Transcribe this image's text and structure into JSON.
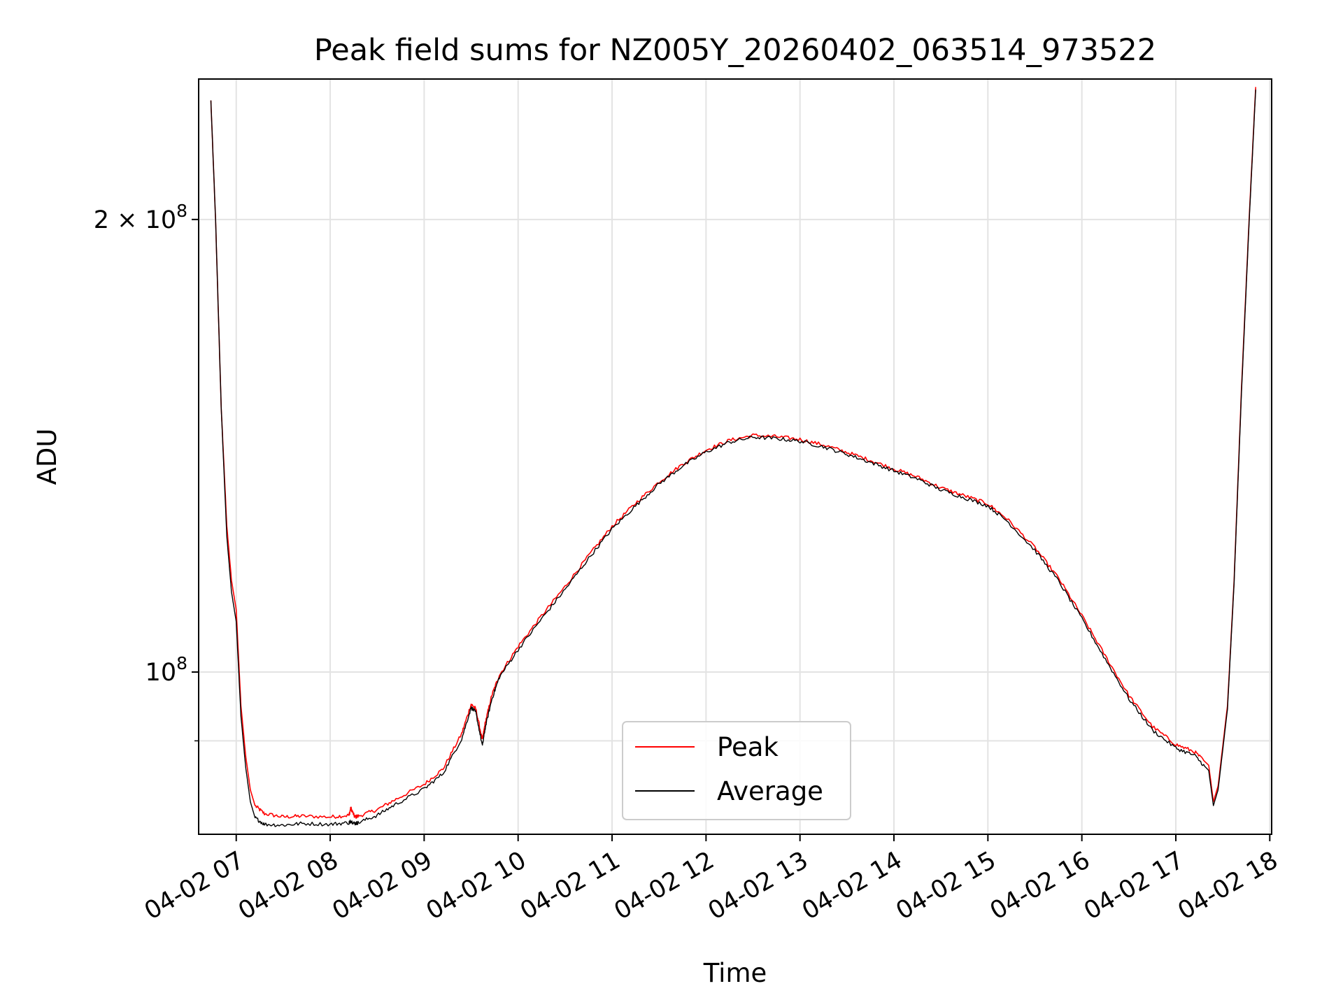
{
  "chart_data": {
    "type": "line",
    "title": "Peak field sums for NZ005Y_20260402_063514_973522",
    "xlabel": "Time",
    "ylabel": "ADU",
    "yscale": "log",
    "ylim": [
      78000000,
      248000000
    ],
    "xlim_hours": [
      6.6,
      18.02
    ],
    "xticks": [
      {
        "hour": 7,
        "label": "04-02 07"
      },
      {
        "hour": 8,
        "label": "04-02 08"
      },
      {
        "hour": 9,
        "label": "04-02 09"
      },
      {
        "hour": 10,
        "label": "04-02 10"
      },
      {
        "hour": 11,
        "label": "04-02 11"
      },
      {
        "hour": 12,
        "label": "04-02 12"
      },
      {
        "hour": 13,
        "label": "04-02 13"
      },
      {
        "hour": 14,
        "label": "04-02 14"
      },
      {
        "hour": 15,
        "label": "04-02 15"
      },
      {
        "hour": 16,
        "label": "04-02 16"
      },
      {
        "hour": 17,
        "label": "04-02 17"
      },
      {
        "hour": 18,
        "label": "04-02 18"
      }
    ],
    "yticks_major": [
      {
        "value": 100000000,
        "base": "10",
        "exp": "8",
        "mult": ""
      },
      {
        "value": 200000000,
        "base": "10",
        "exp": "8",
        "mult": "2 × "
      }
    ],
    "yticks_minor": [
      90000000
    ],
    "grid": true,
    "legend_position": "lower center",
    "series": [
      {
        "name": "Peak",
        "color": "#ff0000",
        "x_hours": [
          6.73,
          6.78,
          6.84,
          6.9,
          6.95,
          7.0,
          7.05,
          7.1,
          7.15,
          7.2,
          7.3,
          7.5,
          7.7,
          8.0,
          8.2,
          8.22,
          8.26,
          8.3,
          8.5,
          8.7,
          9.0,
          9.2,
          9.4,
          9.5,
          9.55,
          9.62,
          9.65,
          9.72,
          9.8,
          10.0,
          10.25,
          10.5,
          10.75,
          11.0,
          11.25,
          11.5,
          11.75,
          12.0,
          12.25,
          12.5,
          12.75,
          13.0,
          13.25,
          13.5,
          13.75,
          14.0,
          14.25,
          14.5,
          14.75,
          15.0,
          15.2,
          15.5,
          15.75,
          16.0,
          16.25,
          16.5,
          16.75,
          17.0,
          17.2,
          17.35,
          17.4,
          17.45,
          17.55,
          17.62,
          17.7,
          17.78,
          17.85
        ],
        "values": [
          240000000,
          200000000,
          150000000,
          125000000,
          115000000,
          110000000,
          95000000,
          88000000,
          83500000,
          81500000,
          80500000,
          80100000,
          80200000,
          80100000,
          80300000,
          81200000,
          80100000,
          80200000,
          81000000,
          82300000,
          84200000,
          86200000,
          91000000,
          95200000,
          94500000,
          90100000,
          92500000,
          96500000,
          99500000,
          104000000,
          109000000,
          114000000,
          119500000,
          125000000,
          129500000,
          133800000,
          137500000,
          140500000,
          142600000,
          143700000,
          143400000,
          142800000,
          141600000,
          140000000,
          138300000,
          136500000,
          134800000,
          132600000,
          131000000,
          129400000,
          126500000,
          121000000,
          115500000,
          109000000,
          102500000,
          96500000,
          92000000,
          89500000,
          88500000,
          86700000,
          82000000,
          84000000,
          95000000,
          115000000,
          155000000,
          200000000,
          245000000
        ]
      },
      {
        "name": "Average",
        "color": "#000000",
        "x_hours": [
          6.73,
          6.78,
          6.84,
          6.9,
          6.95,
          7.0,
          7.05,
          7.1,
          7.15,
          7.2,
          7.3,
          7.5,
          7.7,
          8.0,
          8.2,
          8.22,
          8.26,
          8.3,
          8.5,
          8.7,
          9.0,
          9.2,
          9.4,
          9.5,
          9.55,
          9.62,
          9.65,
          9.72,
          9.8,
          10.0,
          10.25,
          10.5,
          10.75,
          11.0,
          11.25,
          11.5,
          11.75,
          12.0,
          12.25,
          12.5,
          12.75,
          13.0,
          13.25,
          13.5,
          13.75,
          14.0,
          14.25,
          14.5,
          14.75,
          15.0,
          15.2,
          15.5,
          15.75,
          16.0,
          16.25,
          16.5,
          16.75,
          17.0,
          17.2,
          17.35,
          17.4,
          17.45,
          17.55,
          17.62,
          17.7,
          17.78,
          17.85
        ],
        "values": [
          240000000,
          200000000,
          150000000,
          123000000,
          113000000,
          108000000,
          93500000,
          86500000,
          82000000,
          80000000,
          79200000,
          79100000,
          79300000,
          79200000,
          79400000,
          79600000,
          79300000,
          79400000,
          80300000,
          81700000,
          83600000,
          85600000,
          90300000,
          94700000,
          94000000,
          89300000,
          91800000,
          95900000,
          99200000,
          103500000,
          108500000,
          113500000,
          119000000,
          124500000,
          129000000,
          133400000,
          137100000,
          140100000,
          142200000,
          143300000,
          143000000,
          142400000,
          141200000,
          139600000,
          137900000,
          136100000,
          134400000,
          132200000,
          130600000,
          129000000,
          126100000,
          120500000,
          115000000,
          108500000,
          102000000,
          96000000,
          91500000,
          89000000,
          88000000,
          86000000,
          81500000,
          83500000,
          94500000,
          114500000,
          154000000,
          199000000,
          244000000
        ]
      }
    ]
  }
}
